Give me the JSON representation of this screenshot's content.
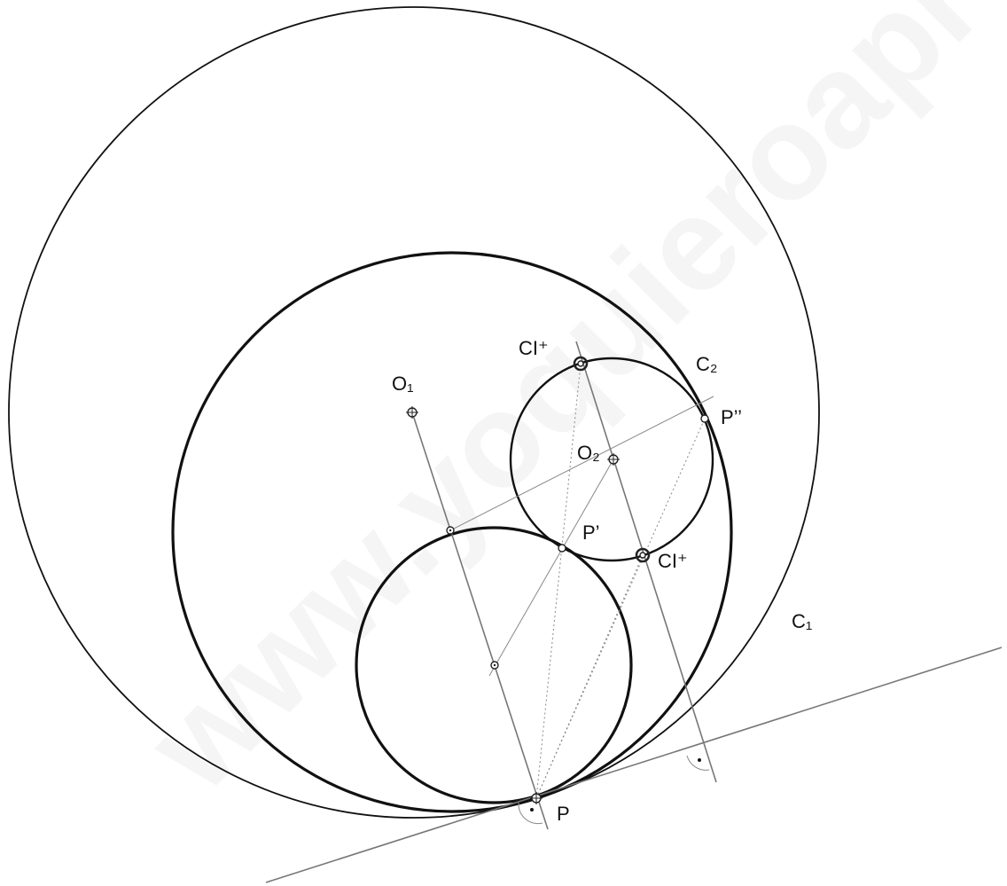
{
  "labels": [
    "O₁",
    "CI⁺",
    "C₂",
    "P’’",
    "O₂",
    "P’",
    "CI⁺",
    "C₁",
    "P"
  ],
  "watermark": "www.yoquieroaprobar.es"
}
